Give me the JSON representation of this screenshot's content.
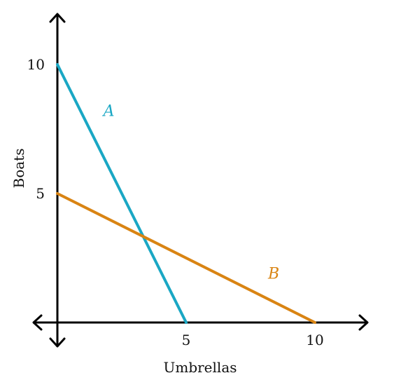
{
  "chart_data": {
    "type": "line",
    "xlabel": "Umbrellas",
    "ylabel": "Boats",
    "xlim": [
      0,
      12
    ],
    "ylim": [
      0,
      12
    ],
    "x_ticks": [
      5,
      10
    ],
    "y_ticks": [
      5,
      10
    ],
    "grid": false,
    "series": [
      {
        "name": "A",
        "color": "#1aa7c4",
        "points": [
          [
            0,
            10
          ],
          [
            5,
            0
          ]
        ],
        "label_at": [
          2,
          8
        ]
      },
      {
        "name": "B",
        "color": "#d98413",
        "points": [
          [
            0,
            5
          ],
          [
            10,
            0
          ]
        ],
        "label_at": [
          8.4,
          1.7
        ]
      }
    ]
  }
}
